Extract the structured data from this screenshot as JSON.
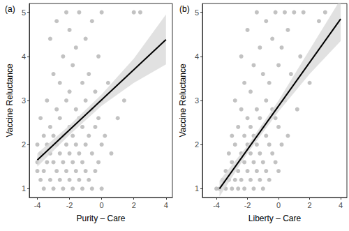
{
  "chart_data": [
    {
      "type": "scatter",
      "panel_label": "(a)",
      "x_label": "Purity – Care",
      "y_label": "Vaccine Reluctance",
      "xlim": [
        -4.5,
        4.4
      ],
      "xticks": [
        -4,
        -2,
        0,
        2,
        4
      ],
      "ylim": [
        0.8,
        5.2
      ],
      "yticks": [
        1,
        2,
        3,
        4,
        5
      ],
      "grid": false,
      "color": "#b3b3b3",
      "x": [
        -4,
        -4,
        -4,
        -3.8,
        -3.8,
        -3.8,
        -3.6,
        -3.6,
        -3.6,
        -3.4,
        -3.4,
        -3.4,
        -3.2,
        -3.2,
        -3.2,
        -3.2,
        -3,
        -3,
        -3,
        -3,
        -2.8,
        -2.8,
        -2.8,
        -2.8,
        -2.6,
        -2.6,
        -2.6,
        -2.6,
        -2.4,
        -2.4,
        -2.4,
        -2.4,
        -2.2,
        -2.2,
        -2.2,
        -2.2,
        -2,
        -2,
        -2,
        -2,
        -2,
        -1.8,
        -1.8,
        -1.8,
        -1.8,
        -1.6,
        -1.6,
        -1.6,
        -1.6,
        -1.4,
        -1.4,
        -1.4,
        -1.4,
        -1.2,
        -1.2,
        -1.2,
        -1.2,
        -1,
        -1,
        -1,
        -1,
        -0.8,
        -0.8,
        -0.8,
        -0.6,
        -0.6,
        -0.6,
        -0.6,
        -0.4,
        -0.4,
        -0.4,
        -0.2,
        -0.2,
        -0.2,
        0,
        0,
        0,
        0,
        0.2,
        0.4,
        0.6,
        1,
        2,
        2.4,
        1.4
      ],
      "values": [
        1.4,
        1.6,
        2,
        1.2,
        1.8,
        2.6,
        1,
        1.4,
        2.2,
        1.6,
        2,
        3,
        1.2,
        1.8,
        2.4,
        4.4,
        1,
        1.6,
        2.2,
        3.6,
        1.4,
        2,
        2.8,
        4.8,
        1.2,
        1.8,
        2.6,
        3.4,
        1,
        1.6,
        2.2,
        4,
        1.4,
        2,
        3,
        5,
        1.2,
        1.8,
        2.4,
        3.2,
        4.6,
        1,
        1.6,
        2.2,
        3.8,
        1.4,
        2,
        2.8,
        4.2,
        1.2,
        1.8,
        2.6,
        5,
        1,
        1.6,
        2.4,
        3.4,
        1.4,
        2,
        3,
        4.4,
        1.2,
        2.2,
        3.6,
        1,
        1.8,
        2.8,
        4.8,
        1.4,
        2.4,
        3.2,
        1.6,
        2.6,
        4,
        1,
        2,
        3,
        5,
        2.2,
        3.4,
        1.8,
        2.6,
        5,
        5,
        3
      ],
      "fit": {
        "color": "#000000",
        "x": [
          -4,
          4
        ],
        "values": [
          1.65,
          4.38
        ]
      },
      "band": {
        "color": "#d9d9d9",
        "x": [
          -4,
          -2,
          0,
          2,
          4
        ],
        "lower": [
          1.5,
          2.22,
          2.88,
          3.4,
          3.82
        ],
        "upper": [
          1.8,
          2.44,
          3.14,
          3.95,
          4.95
        ]
      }
    },
    {
      "type": "scatter",
      "panel_label": "(b)",
      "x_label": "Liberty – Care",
      "y_label": "Vaccine Reluctance",
      "xlim": [
        -4.9,
        4.4
      ],
      "xticks": [
        -4,
        -2,
        0,
        2,
        4
      ],
      "ylim": [
        0.8,
        5.2
      ],
      "yticks": [
        1,
        2,
        3,
        4,
        5
      ],
      "grid": false,
      "color": "#b3b3b3",
      "x": [
        -4,
        -3.8,
        -3.6,
        -3.4,
        -3.4,
        -3.2,
        -3.2,
        -3,
        -3,
        -3,
        -2.8,
        -2.8,
        -2.8,
        -2.6,
        -2.6,
        -2.6,
        -2.4,
        -2.4,
        -2.4,
        -2.4,
        -2.2,
        -2.2,
        -2.2,
        -2.2,
        -2,
        -2,
        -2,
        -2,
        -1.8,
        -1.8,
        -1.8,
        -1.8,
        -1.6,
        -1.6,
        -1.6,
        -1.6,
        -1.4,
        -1.4,
        -1.4,
        -1.4,
        -1.2,
        -1.2,
        -1.2,
        -1.2,
        -1,
        -1,
        -1,
        -1,
        -0.8,
        -0.8,
        -0.8,
        -0.8,
        -0.6,
        -0.6,
        -0.6,
        -0.4,
        -0.4,
        -0.4,
        -0.2,
        -0.2,
        -0.2,
        0,
        0,
        0,
        0.2,
        0.2,
        0.4,
        0.4,
        0.6,
        0.6,
        0.8,
        1,
        1.2,
        1.4,
        1.6,
        2,
        2.6,
        3
      ],
      "values": [
        1,
        1,
        1.2,
        1,
        1.4,
        1.2,
        1.8,
        1,
        1.6,
        2.2,
        1.2,
        2,
        3,
        1,
        1.4,
        2.4,
        1.2,
        1.8,
        2.8,
        4,
        1,
        1.6,
        2.2,
        3.4,
        1.4,
        2,
        2.6,
        4.6,
        1.2,
        1.8,
        2.4,
        3.2,
        1,
        1.6,
        2.2,
        3.8,
        1.4,
        2,
        2.8,
        5,
        1.2,
        1.8,
        2.6,
        4.2,
        1,
        1.6,
        2.4,
        3.6,
        1.4,
        2.2,
        3,
        4.8,
        1.2,
        2,
        3.4,
        1.8,
        2.8,
        4.4,
        1.6,
        2.6,
        5,
        1.4,
        2.4,
        3.8,
        2,
        4.2,
        3,
        5,
        2.2,
        4.6,
        3.6,
        5,
        2.8,
        4,
        5,
        3.4,
        4.8,
        5
      ],
      "fit": {
        "color": "#000000",
        "x": [
          -3.8,
          4
        ],
        "values": [
          1,
          4.85
        ]
      },
      "band": {
        "color": "#d9d9d9",
        "x": [
          -3.8,
          -2,
          0,
          2,
          4
        ],
        "lower": [
          0.82,
          1.8,
          2.75,
          3.6,
          4.35
        ],
        "upper": [
          1.18,
          1.98,
          3,
          4.15,
          5.3
        ]
      }
    }
  ]
}
